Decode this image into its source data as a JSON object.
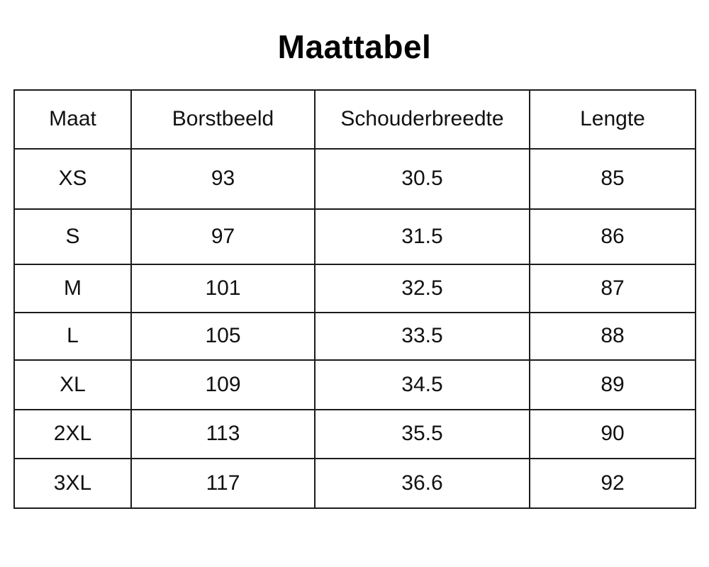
{
  "title": "Maattabel",
  "table": {
    "columns": [
      "Maat",
      "Borstbeeld",
      "Schouderbreedte",
      "Lengte"
    ],
    "rows": [
      [
        "XS",
        "93",
        "30.5",
        "85"
      ],
      [
        "S",
        "97",
        "31.5",
        "86"
      ],
      [
        "M",
        "101",
        "32.5",
        "87"
      ],
      [
        "L",
        "105",
        "33.5",
        "88"
      ],
      [
        "XL",
        "109",
        "34.5",
        "89"
      ],
      [
        "2XL",
        "113",
        "35.5",
        "90"
      ],
      [
        "3XL",
        "117",
        "36.6",
        "92"
      ]
    ]
  },
  "colors": {
    "text": "#111111",
    "border": "#1c1c1c",
    "background": "#ffffff"
  },
  "chart_data": {
    "type": "table",
    "title": "Maattabel",
    "columns": [
      "Maat",
      "Borstbeeld",
      "Schouderbreedte",
      "Lengte"
    ],
    "rows": [
      {
        "maat": "XS",
        "borstbeeld": 93,
        "schouderbreedte": 30.5,
        "lengte": 85
      },
      {
        "maat": "S",
        "borstbeeld": 97,
        "schouderbreedte": 31.5,
        "lengte": 86
      },
      {
        "maat": "M",
        "borstbeeld": 101,
        "schouderbreedte": 32.5,
        "lengte": 87
      },
      {
        "maat": "L",
        "borstbeeld": 105,
        "schouderbreedte": 33.5,
        "lengte": 88
      },
      {
        "maat": "XL",
        "borstbeeld": 109,
        "schouderbreedte": 34.5,
        "lengte": 89
      },
      {
        "maat": "2XL",
        "borstbeeld": 113,
        "schouderbreedte": 35.5,
        "lengte": 90
      },
      {
        "maat": "3XL",
        "borstbeeld": 117,
        "schouderbreedte": 36.6,
        "lengte": 92
      }
    ]
  }
}
